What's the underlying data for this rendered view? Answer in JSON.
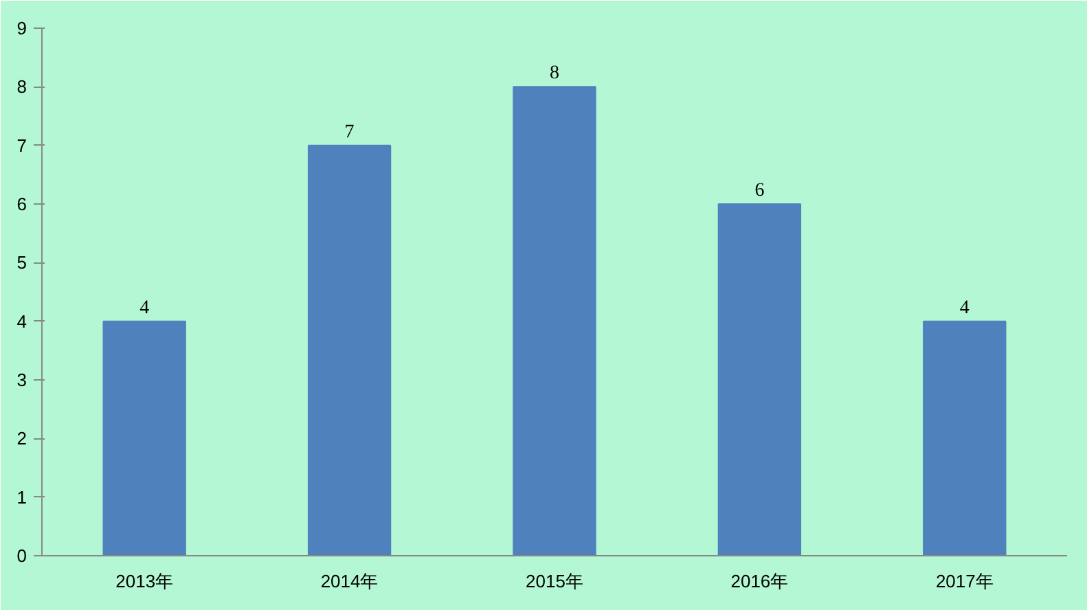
{
  "chart_data": {
    "type": "bar",
    "categories": [
      "2013年",
      "2014年",
      "2015年",
      "2016年",
      "2017年"
    ],
    "values": [
      4,
      7,
      8,
      6,
      4
    ],
    "color": "#4f81bd",
    "ylim": [
      0,
      9
    ],
    "yticks": [
      0,
      1,
      2,
      3,
      4,
      5,
      6,
      7,
      8,
      9
    ],
    "grid": false,
    "data_labels": true
  }
}
